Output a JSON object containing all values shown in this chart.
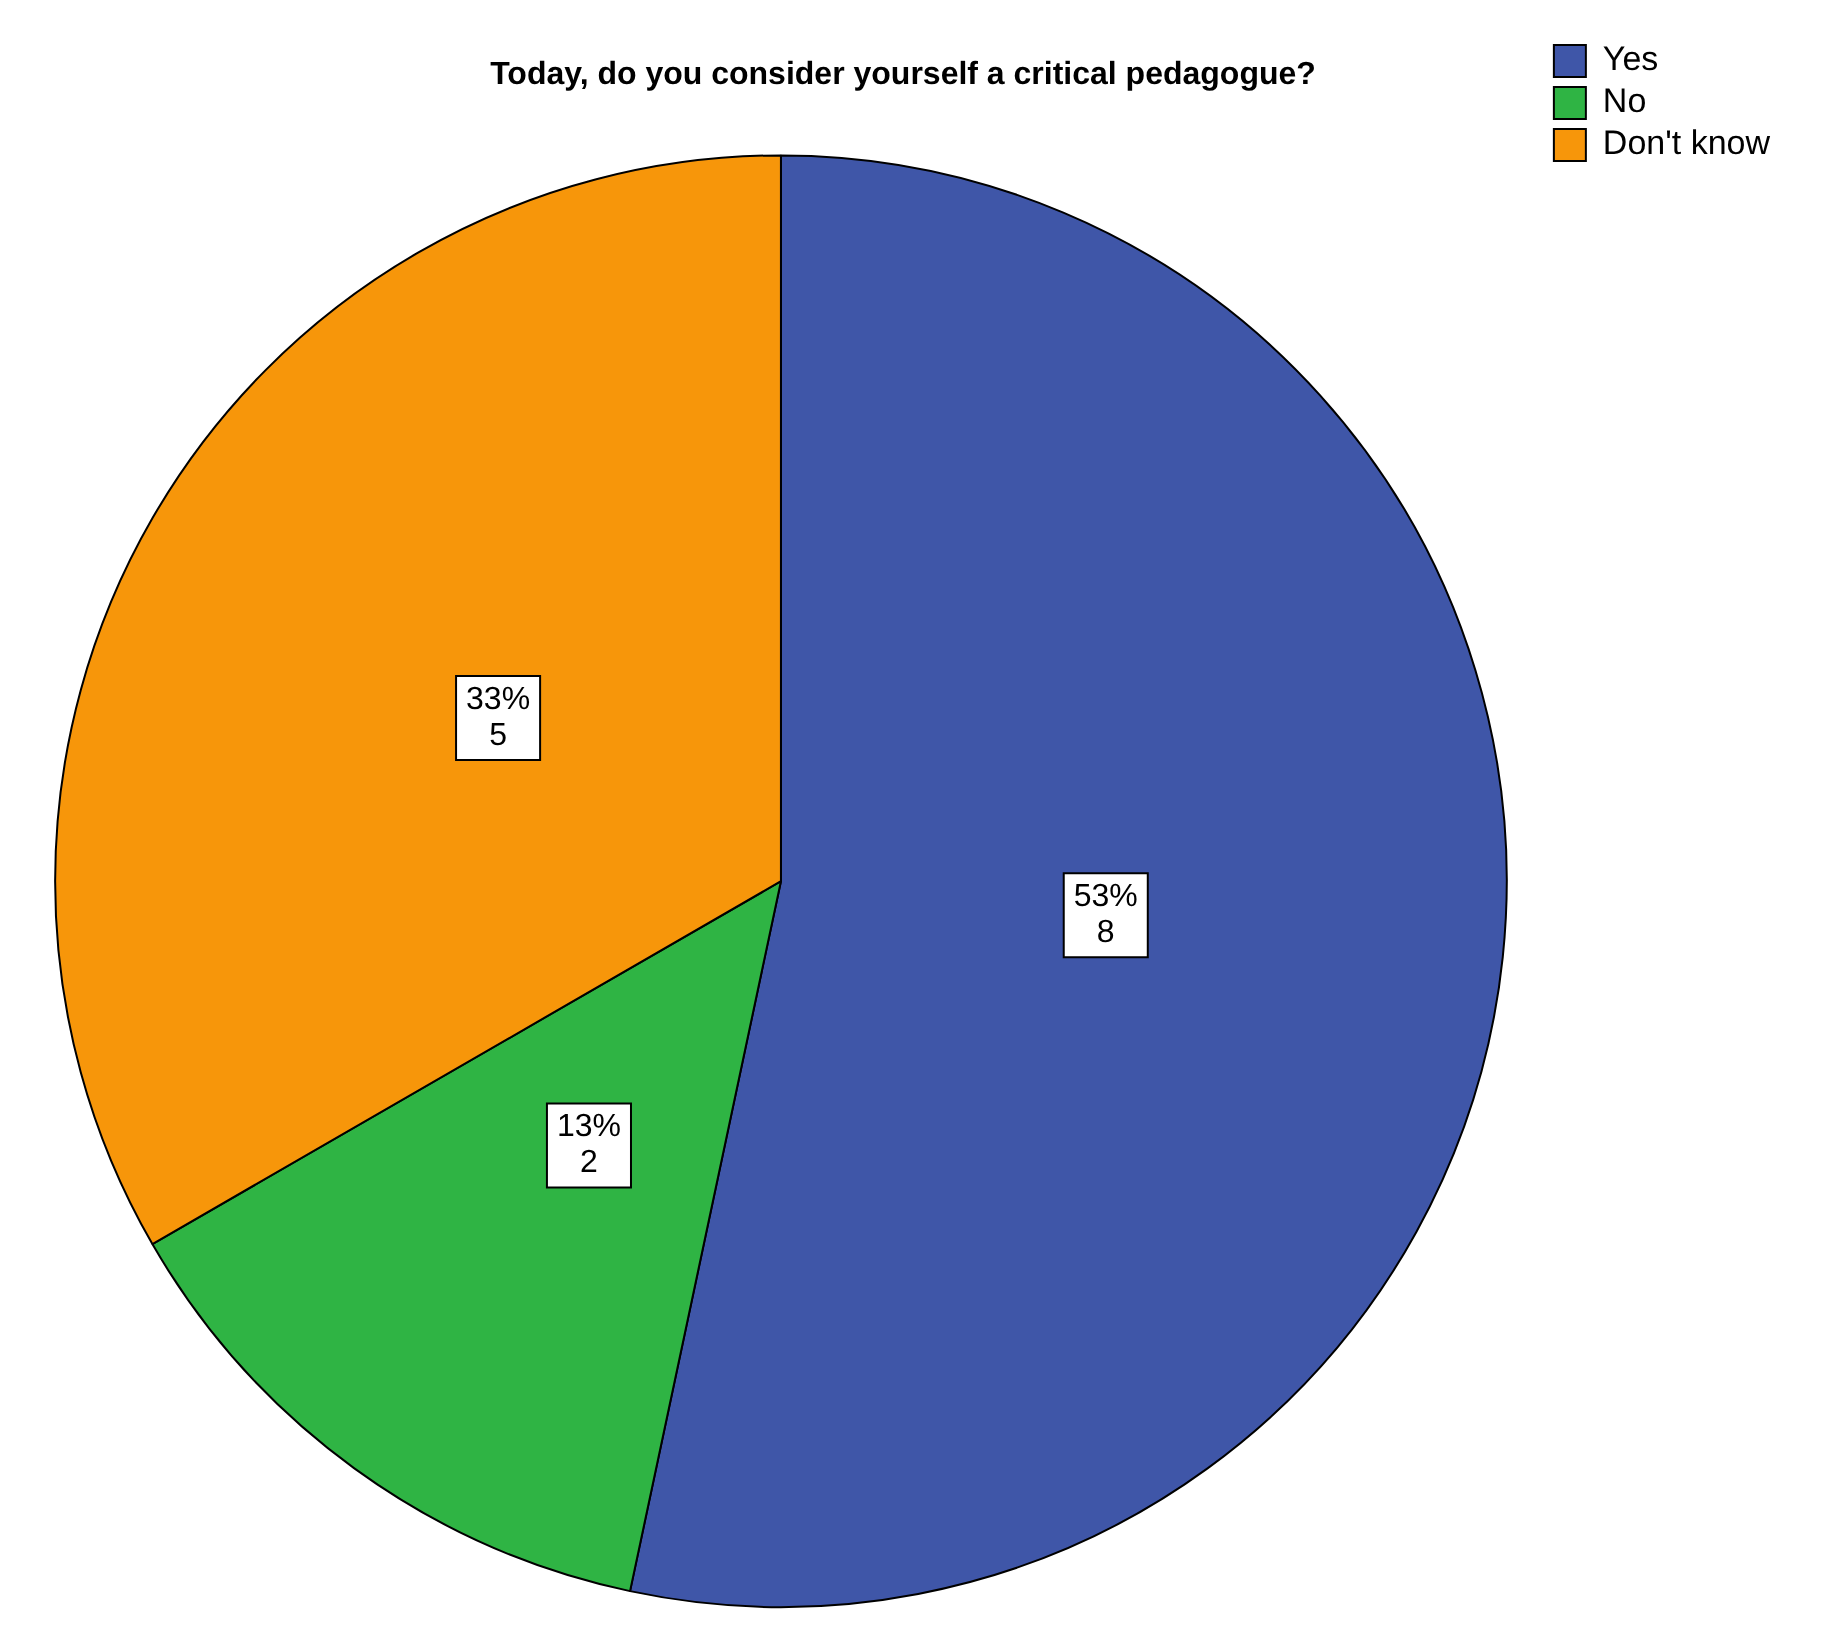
{
  "chart_data": {
    "type": "pie",
    "title": "Today, do you consider yourself a critical pedagogue?",
    "categories": [
      "Yes",
      "No",
      "Don't know"
    ],
    "values": [
      8,
      2,
      5
    ],
    "colors": [
      "#3f56a8",
      "#2fb444",
      "#f7960a"
    ],
    "value_labels": [
      "53%\n8",
      "13%\n2",
      "33%\n5"
    ],
    "legend": "top right"
  }
}
